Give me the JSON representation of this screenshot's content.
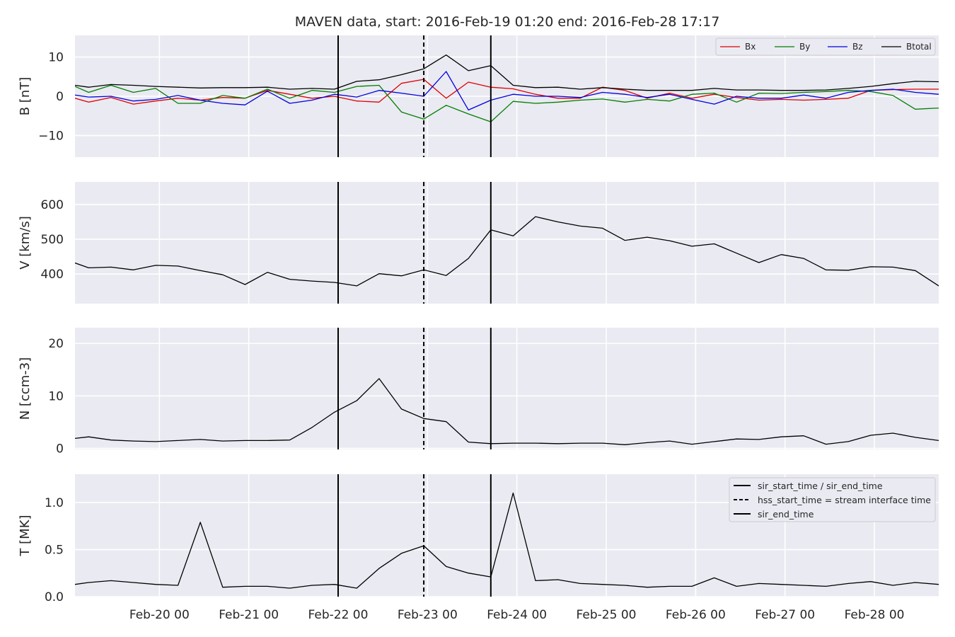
{
  "title": "MAVEN data, start: 2016-Feb-19 01:20  end: 2016-Feb-28 17:17",
  "x_ticks": [
    "Feb-20 00",
    "Feb-21 00",
    "Feb-22 00",
    "Feb-23 00",
    "Feb-24 00",
    "Feb-25 00",
    "Feb-26 00",
    "Feb-27 00",
    "Feb-28 00"
  ],
  "colors": {
    "Bx": "#e00000",
    "By": "#007f00",
    "Bz": "#0000e0",
    "Btotal": "#000000",
    "background": "#eaeaf2",
    "grid": "#ffffff"
  },
  "chart_data": [
    {
      "type": "line",
      "x_start": "2016-02-19 01:20",
      "x_end": "2016-02-28 17:17",
      "ylabel": "B [nT]",
      "ylim": [
        -15.5,
        15.5
      ],
      "yticks": [
        -10,
        0,
        10
      ],
      "legend_placement": "top-right",
      "x": [
        "2016-02-19 01:20",
        "2016-02-19 05:00",
        "2016-02-19 11:00",
        "2016-02-19 17:00",
        "2016-02-19 23:00",
        "2016-02-20 05:00",
        "2016-02-20 11:00",
        "2016-02-20 17:00",
        "2016-02-20 23:00",
        "2016-02-21 05:00",
        "2016-02-21 11:00",
        "2016-02-21 17:00",
        "2016-02-21 23:00",
        "2016-02-22 05:00",
        "2016-02-22 11:00",
        "2016-02-22 17:00",
        "2016-02-22 23:00",
        "2016-02-23 05:00",
        "2016-02-23 11:00",
        "2016-02-23 17:00",
        "2016-02-23 23:00",
        "2016-02-24 05:00",
        "2016-02-24 11:00",
        "2016-02-24 17:00",
        "2016-02-24 23:00",
        "2016-02-25 05:00",
        "2016-02-25 11:00",
        "2016-02-25 17:00",
        "2016-02-25 23:00",
        "2016-02-26 05:00",
        "2016-02-26 11:00",
        "2016-02-26 17:00",
        "2016-02-26 23:00",
        "2016-02-27 05:00",
        "2016-02-27 11:00",
        "2016-02-27 17:00",
        "2016-02-27 23:00",
        "2016-02-28 05:00",
        "2016-02-28 11:00",
        "2016-02-28 17:17"
      ],
      "series": [
        {
          "name": "Bx",
          "color": "#e00000",
          "values": [
            -0.5,
            -1.5,
            -0.3,
            -2.0,
            -1.2,
            -0.5,
            -1.0,
            -0.3,
            -0.5,
            1.5,
            0.5,
            -0.5,
            0,
            -1.2,
            -1.5,
            3.3,
            4.3,
            -0.5,
            3.6,
            2.3,
            1.9,
            0.5,
            -0.5,
            -0.5,
            2.3,
            1.5,
            -0.5,
            0.8,
            -0.5,
            0.5,
            -0.3,
            -1.0,
            -0.8,
            -1.0,
            -0.8,
            -0.5,
            1.5,
            1.7,
            1.8,
            1.8
          ]
        },
        {
          "name": "By",
          "color": "#007f00",
          "values": [
            2.5,
            1.0,
            2.8,
            1.0,
            2.0,
            -1.8,
            -1.8,
            0.2,
            -0.5,
            1.8,
            -0.5,
            1.5,
            1.0,
            2.5,
            2.8,
            -4.0,
            -5.8,
            -2.3,
            -4.5,
            -6.5,
            -1.3,
            -1.8,
            -1.5,
            -1.0,
            -0.7,
            -1.5,
            -0.8,
            -1.2,
            0.5,
            0.8,
            -1.5,
            0.8,
            0.7,
            1.0,
            1.2,
            1.5,
            1.2,
            0.2,
            -3.3,
            -3.0
          ]
        },
        {
          "name": "Bz",
          "color": "#0000e0",
          "values": [
            0.3,
            -0.2,
            0,
            -1.2,
            -0.8,
            0.2,
            -1.0,
            -1.8,
            -2.2,
            1.3,
            -1.8,
            -1.0,
            0.5,
            -0.2,
            1.5,
            0.8,
            0.0,
            6.3,
            -3.5,
            -1.0,
            0.5,
            0.0,
            0.0,
            -0.3,
            1.0,
            0.5,
            -0.3,
            0.5,
            -0.8,
            -2.0,
            0.0,
            -0.5,
            -0.5,
            0.3,
            -0.5,
            1.0,
            1.5,
            1.8,
            1.0,
            0.5
          ]
        },
        {
          "name": "Btotal",
          "color": "#000000",
          "values": [
            2.8,
            2.3,
            3.0,
            2.8,
            2.5,
            2.3,
            2.1,
            2.2,
            2.2,
            2.3,
            1.8,
            2.0,
            1.8,
            3.8,
            4.2,
            5.5,
            7.0,
            10.5,
            6.5,
            7.8,
            2.8,
            2.2,
            2.3,
            1.8,
            2.2,
            1.8,
            1.5,
            1.5,
            1.5,
            2.0,
            1.6,
            1.6,
            1.5,
            1.5,
            1.6,
            2.0,
            2.5,
            3.2,
            3.8,
            3.7
          ]
        }
      ]
    },
    {
      "type": "line",
      "x_start": "2016-02-19 01:20",
      "x_end": "2016-02-28 17:17",
      "ylabel": "V [km/s]",
      "ylim": [
        315,
        665
      ],
      "yticks": [
        400,
        500,
        600
      ],
      "x": [
        "2016-02-19 01:20",
        "2016-02-19 05:00",
        "2016-02-19 11:00",
        "2016-02-19 17:00",
        "2016-02-19 23:00",
        "2016-02-20 05:00",
        "2016-02-20 11:00",
        "2016-02-20 17:00",
        "2016-02-20 23:00",
        "2016-02-21 05:00",
        "2016-02-21 11:00",
        "2016-02-21 17:00",
        "2016-02-21 23:00",
        "2016-02-22 05:00",
        "2016-02-22 11:00",
        "2016-02-22 17:00",
        "2016-02-22 23:00",
        "2016-02-23 05:00",
        "2016-02-23 11:00",
        "2016-02-23 17:00",
        "2016-02-23 23:00",
        "2016-02-24 05:00",
        "2016-02-24 11:00",
        "2016-02-24 17:00",
        "2016-02-24 23:00",
        "2016-02-25 05:00",
        "2016-02-25 11:00",
        "2016-02-25 17:00",
        "2016-02-25 23:00",
        "2016-02-26 05:00",
        "2016-02-26 11:00",
        "2016-02-26 17:00",
        "2016-02-26 23:00",
        "2016-02-27 05:00",
        "2016-02-27 11:00",
        "2016-02-27 17:00",
        "2016-02-27 23:00",
        "2016-02-28 05:00",
        "2016-02-28 11:00",
        "2016-02-28 17:17"
      ],
      "series": [
        {
          "values": [
            432,
            418,
            420,
            412,
            425,
            423,
            410,
            398,
            370,
            405,
            385,
            380,
            376,
            366,
            401,
            395,
            412,
            396,
            445,
            527,
            510,
            565,
            550,
            538,
            532,
            497,
            506,
            496,
            480,
            487,
            460,
            433,
            456,
            445,
            412,
            411,
            421,
            420,
            410,
            366
          ]
        }
      ]
    },
    {
      "type": "line",
      "x_start": "2016-02-19 01:20",
      "x_end": "2016-02-28 17:17",
      "ylabel": "N [ccm-3]",
      "ylim": [
        -0.2,
        23
      ],
      "yticks": [
        0,
        10,
        20
      ],
      "x": [
        "2016-02-19 01:20",
        "2016-02-19 05:00",
        "2016-02-19 11:00",
        "2016-02-19 17:00",
        "2016-02-19 23:00",
        "2016-02-20 05:00",
        "2016-02-20 11:00",
        "2016-02-20 17:00",
        "2016-02-20 23:00",
        "2016-02-21 05:00",
        "2016-02-21 11:00",
        "2016-02-21 17:00",
        "2016-02-21 23:00",
        "2016-02-22 05:00",
        "2016-02-22 11:00",
        "2016-02-22 17:00",
        "2016-02-22 23:00",
        "2016-02-23 05:00",
        "2016-02-23 11:00",
        "2016-02-23 17:00",
        "2016-02-23 23:00",
        "2016-02-24 05:00",
        "2016-02-24 11:00",
        "2016-02-24 17:00",
        "2016-02-24 23:00",
        "2016-02-25 05:00",
        "2016-02-25 11:00",
        "2016-02-25 17:00",
        "2016-02-25 23:00",
        "2016-02-26 05:00",
        "2016-02-26 11:00",
        "2016-02-26 17:00",
        "2016-02-26 23:00",
        "2016-02-27 05:00",
        "2016-02-27 11:00",
        "2016-02-27 17:00",
        "2016-02-27 23:00",
        "2016-02-28 05:00",
        "2016-02-28 11:00",
        "2016-02-28 17:17"
      ],
      "series": [
        {
          "values": [
            1.9,
            2.2,
            1.6,
            1.4,
            1.3,
            1.5,
            1.7,
            1.4,
            1.5,
            1.5,
            1.6,
            4.0,
            6.9,
            9.1,
            13.3,
            7.5,
            5.7,
            5.1,
            1.2,
            0.9,
            1.0,
            1.0,
            0.9,
            1.0,
            1.0,
            0.7,
            1.1,
            1.4,
            0.8,
            1.3,
            1.8,
            1.7,
            2.2,
            2.4,
            0.8,
            1.3,
            2.5,
            2.9,
            2.1,
            1.5
          ]
        }
      ]
    },
    {
      "type": "line",
      "x_start": "2016-02-19 01:20",
      "x_end": "2016-02-28 17:17",
      "ylabel": "T [MK]",
      "ylim": [
        0,
        1.3
      ],
      "yticks": [
        0.0,
        0.5,
        1.0
      ],
      "yticklabels": [
        "0.0",
        "0.5",
        "1.0"
      ],
      "legend_placement": "top-right",
      "x": [
        "2016-02-19 01:20",
        "2016-02-19 05:00",
        "2016-02-19 11:00",
        "2016-02-19 17:00",
        "2016-02-19 23:00",
        "2016-02-20 05:00",
        "2016-02-20 11:00",
        "2016-02-20 17:00",
        "2016-02-20 23:00",
        "2016-02-21 05:00",
        "2016-02-21 11:00",
        "2016-02-21 17:00",
        "2016-02-21 23:00",
        "2016-02-22 05:00",
        "2016-02-22 11:00",
        "2016-02-22 17:00",
        "2016-02-22 23:00",
        "2016-02-23 05:00",
        "2016-02-23 11:00",
        "2016-02-23 17:00",
        "2016-02-23 23:00",
        "2016-02-24 05:00",
        "2016-02-24 11:00",
        "2016-02-24 17:00",
        "2016-02-24 23:00",
        "2016-02-25 05:00",
        "2016-02-25 11:00",
        "2016-02-25 17:00",
        "2016-02-25 23:00",
        "2016-02-26 05:00",
        "2016-02-26 11:00",
        "2016-02-26 17:00",
        "2016-02-26 23:00",
        "2016-02-27 05:00",
        "2016-02-27 11:00",
        "2016-02-27 17:00",
        "2016-02-27 23:00",
        "2016-02-28 05:00",
        "2016-02-28 11:00",
        "2016-02-28 17:17"
      ],
      "series": [
        {
          "values": [
            0.13,
            0.15,
            0.17,
            0.15,
            0.13,
            0.12,
            0.79,
            0.1,
            0.11,
            0.11,
            0.09,
            0.12,
            0.13,
            0.09,
            0.3,
            0.46,
            0.54,
            0.32,
            0.25,
            0.21,
            1.1,
            0.17,
            0.18,
            0.14,
            0.13,
            0.12,
            0.1,
            0.11,
            0.11,
            0.2,
            0.11,
            0.14,
            0.13,
            0.12,
            0.11,
            0.14,
            0.16,
            0.12,
            0.15,
            0.13
          ]
        }
      ]
    }
  ],
  "event_lines": [
    {
      "time": "2016-02-22 00:00",
      "style": "solid"
    },
    {
      "time": "2016-02-22 23:00",
      "style": "dashed"
    },
    {
      "time": "2016-02-23 17:00",
      "style": "solid"
    }
  ],
  "event_legend": [
    {
      "label": "sir_start_time / sir_end_time",
      "style": "solid"
    },
    {
      "label": "hss_start_time = stream interface time",
      "style": "dashed"
    },
    {
      "label": "sir_end_time",
      "style": "solid"
    }
  ]
}
